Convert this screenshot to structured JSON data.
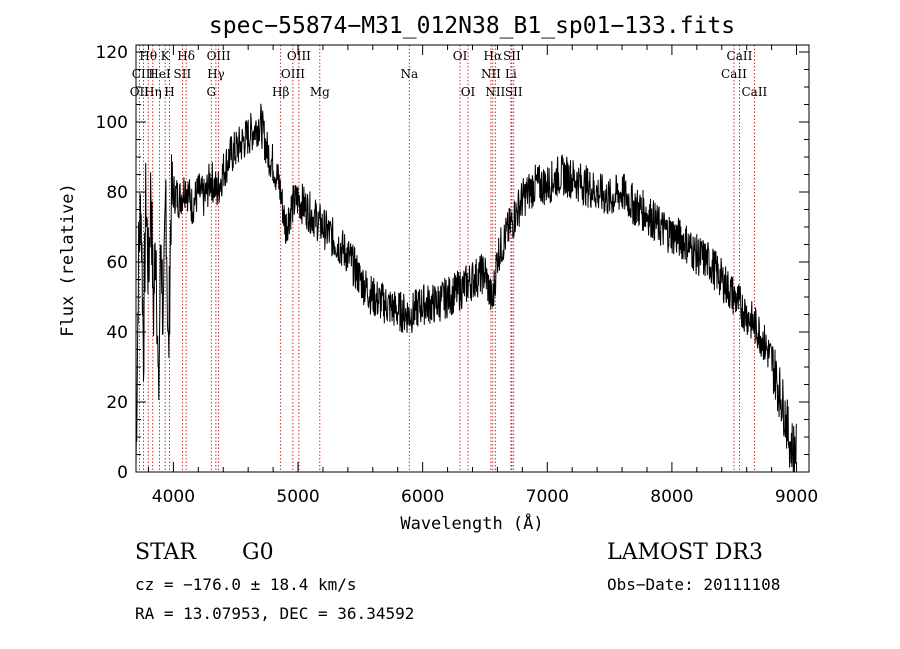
{
  "chart_data": {
    "type": "line",
    "title": "spec−55874−M31_012N38_B1_sp01−133.fits",
    "xlabel": "Wavelength (Å)",
    "ylabel": "Flux (relative)",
    "xlim": [
      3700,
      9100
    ],
    "ylim": [
      0,
      122
    ],
    "x_ticks": [
      4000,
      5000,
      6000,
      7000,
      8000,
      9000
    ],
    "y_ticks": [
      0,
      20,
      40,
      60,
      80,
      100,
      120
    ],
    "series": [
      {
        "name": "flux",
        "x": [
          3700,
          3720,
          3740,
          3760,
          3780,
          3800,
          3820,
          3840,
          3860,
          3880,
          3900,
          3920,
          3940,
          3960,
          3980,
          4000,
          4050,
          4100,
          4150,
          4200,
          4250,
          4300,
          4350,
          4400,
          4450,
          4500,
          4550,
          4600,
          4650,
          4700,
          4750,
          4800,
          4850,
          4900,
          4950,
          5000,
          5100,
          5200,
          5300,
          5400,
          5500,
          5600,
          5700,
          5800,
          5900,
          6000,
          6100,
          6200,
          6300,
          6400,
          6500,
          6560,
          6600,
          6700,
          6800,
          6900,
          7000,
          7100,
          7200,
          7300,
          7400,
          7500,
          7600,
          7700,
          7800,
          7900,
          8000,
          8100,
          8200,
          8300,
          8400,
          8500,
          8600,
          8700,
          8800,
          8850,
          8900,
          8950,
          9000
        ],
        "y": [
          2,
          60,
          78,
          35,
          80,
          55,
          82,
          45,
          70,
          18,
          68,
          40,
          82,
          30,
          76,
          80,
          78,
          82,
          76,
          80,
          78,
          84,
          80,
          86,
          90,
          92,
          94,
          96,
          98,
          100,
          92,
          88,
          82,
          70,
          76,
          78,
          74,
          70,
          66,
          62,
          55,
          50,
          48,
          46,
          45,
          48,
          48,
          50,
          52,
          55,
          57,
          48,
          62,
          70,
          78,
          82,
          82,
          85,
          84,
          82,
          80,
          78,
          80,
          76,
          74,
          70,
          68,
          66,
          62,
          60,
          55,
          50,
          45,
          40,
          32,
          25,
          18,
          8,
          6
        ]
      }
    ],
    "line_markers": [
      {
        "label": "Hθ",
        "x": 3798,
        "row": 0
      },
      {
        "label": "OII",
        "x": 3727,
        "row": 2
      },
      {
        "label": "CIII",
        "x": 3760,
        "row": 1
      },
      {
        "label": "Hη",
        "x": 3835,
        "row": 2
      },
      {
        "label": "HeI",
        "x": 3889,
        "row": 1
      },
      {
        "label": "K",
        "x": 3934,
        "row": 0
      },
      {
        "label": "H",
        "x": 3969,
        "row": 2
      },
      {
        "label": "SII",
        "x": 4072,
        "row": 1
      },
      {
        "label": "Hδ",
        "x": 4102,
        "row": 0
      },
      {
        "label": "G",
        "x": 4304,
        "row": 2
      },
      {
        "label": "Hγ",
        "x": 4341,
        "row": 1
      },
      {
        "label": "OIII",
        "x": 4363,
        "row": 0
      },
      {
        "label": "Hβ",
        "x": 4861,
        "row": 2
      },
      {
        "label": "OIII",
        "x": 4959,
        "row": 1
      },
      {
        "label": "OIII",
        "x": 5007,
        "row": 0
      },
      {
        "label": "Mg",
        "x": 5175,
        "row": 2
      },
      {
        "label": "Na",
        "x": 5893,
        "row": 1
      },
      {
        "label": "OI",
        "x": 6300,
        "row": 0
      },
      {
        "label": "OI",
        "x": 6364,
        "row": 2
      },
      {
        "label": "NII",
        "x": 6548,
        "row": 1
      },
      {
        "label": "Hα",
        "x": 6563,
        "row": 0
      },
      {
        "label": "NII",
        "x": 6583,
        "row": 2
      },
      {
        "label": "Li",
        "x": 6708,
        "row": 1
      },
      {
        "label": "SII",
        "x": 6716,
        "row": 0
      },
      {
        "label": "SII",
        "x": 6731,
        "row": 2
      },
      {
        "label": "CaII",
        "x": 8498,
        "row": 1
      },
      {
        "label": "CaII",
        "x": 8542,
        "row": 0
      },
      {
        "label": "CaII",
        "x": 8662,
        "row": 2
      }
    ],
    "marker_color": "#c00000",
    "line_color": "#000000"
  },
  "info": {
    "class": "STAR",
    "subclass": "G0",
    "survey": "LAMOST DR3",
    "cz": "cz = −176.0 ± 18.4 km/s",
    "obs_date": "Obs−Date: 20111108",
    "radec": "RA =  13.07953, DEC =  36.34592"
  }
}
